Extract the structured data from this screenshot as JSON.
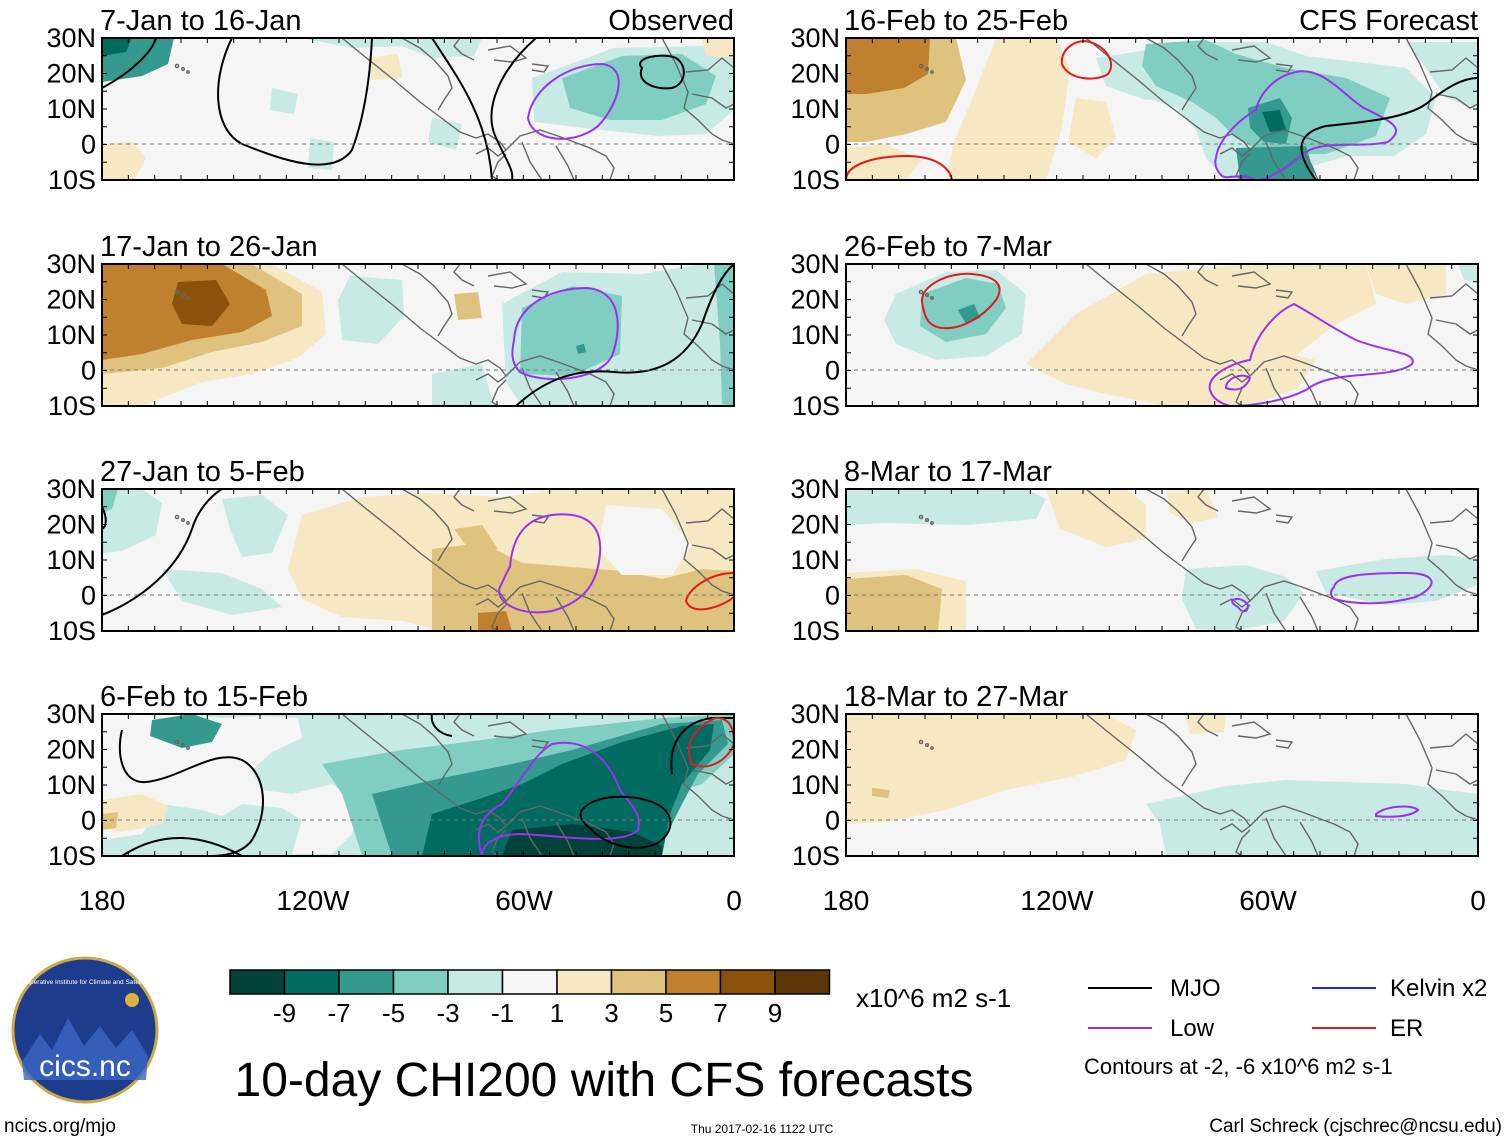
{
  "colors": {
    "scale": [
      "#01433a",
      "#016b61",
      "#34998e",
      "#80cdc1",
      "#c7eae5",
      "#f5f5f5",
      "#f6e8c3",
      "#dfc27d",
      "#bf812d",
      "#8c510a",
      "#5b3606"
    ],
    "mjo": "#000000",
    "low": "#9932ee",
    "kelvin": "#2222ee",
    "er": "#e11b1b",
    "land": "#666666"
  },
  "axes": {
    "lat_labels": [
      "30N",
      "20N",
      "10N",
      "0",
      "10S"
    ],
    "lon_labels": [
      "180",
      "120W",
      "60W",
      "0"
    ]
  },
  "panels": [
    {
      "period": "7-Jan to 16-Jan",
      "tag": "Observed",
      "pattern": "p1"
    },
    {
      "period": "17-Jan to 26-Jan",
      "tag": "",
      "pattern": "p2"
    },
    {
      "period": "27-Jan to 5-Feb",
      "tag": "",
      "pattern": "p3"
    },
    {
      "period": "6-Feb to 15-Feb",
      "tag": "",
      "pattern": "p4"
    },
    {
      "period": "16-Feb to 25-Feb",
      "tag": "CFS Forecast",
      "pattern": "p5"
    },
    {
      "period": "26-Feb to 7-Mar",
      "tag": "",
      "pattern": "p6"
    },
    {
      "period": "8-Mar to 17-Mar",
      "tag": "",
      "pattern": "p7"
    },
    {
      "period": "18-Mar to 27-Mar",
      "tag": "",
      "pattern": "p8"
    }
  ],
  "colorbar": {
    "ticks": [
      "-9",
      "-7",
      "-5",
      "-3",
      "-1",
      "1",
      "3",
      "5",
      "7",
      "9"
    ],
    "units": "x10^6 m2 s-1"
  },
  "legend": {
    "items": [
      {
        "label": "MJO",
        "key": "mjo"
      },
      {
        "label": "Kelvin x2",
        "key": "kelvin"
      },
      {
        "label": "Low",
        "key": "low"
      },
      {
        "label": "ER",
        "key": "er"
      }
    ],
    "contours_note": "Contours at -2, -6 x10^6 m2 s-1"
  },
  "logo": {
    "text": "cics.nc",
    "ring_text": "Cooperative Institute for Climate and Satellites"
  },
  "title": "10-day CHI200 with CFS forecasts",
  "footer": {
    "left": "ncics.org/mjo",
    "center": "Thu 2017-02-16 1122 UTC",
    "right": "Carl Schreck (cjschrec@ncsu.edu)"
  }
}
